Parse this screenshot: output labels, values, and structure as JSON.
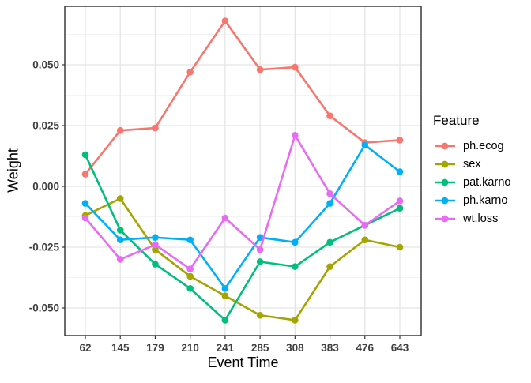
{
  "chart_data": {
    "type": "line",
    "title": "",
    "xlabel": "Event Time",
    "ylabel": "Weight",
    "x_categories": [
      "62",
      "145",
      "179",
      "210",
      "241",
      "285",
      "308",
      "383",
      "476",
      "643"
    ],
    "y_ticks": [
      0.05,
      0.025,
      0.0,
      -0.025,
      -0.05
    ],
    "y_tick_labels": [
      "0.050",
      "0.025",
      "0.000",
      "-0.025",
      "-0.050"
    ],
    "ylim": [
      -0.0615,
      0.074
    ],
    "grid": "major-and-minor-horizontal, major-vertical",
    "legend_title": "Feature",
    "legend_position": "right",
    "series": [
      {
        "name": "ph.ecog",
        "color": "#F8766D",
        "values": [
          0.005,
          0.023,
          0.024,
          0.047,
          0.068,
          0.048,
          0.049,
          0.029,
          0.018,
          0.019
        ]
      },
      {
        "name": "sex",
        "color": "#A3A500",
        "values": [
          -0.012,
          -0.005,
          -0.026,
          -0.037,
          -0.045,
          -0.053,
          -0.055,
          -0.033,
          -0.022,
          -0.025
        ]
      },
      {
        "name": "pat.karno",
        "color": "#00BF7D",
        "values": [
          0.013,
          -0.018,
          -0.032,
          -0.042,
          -0.055,
          -0.031,
          -0.033,
          -0.023,
          -0.016,
          -0.009
        ]
      },
      {
        "name": "ph.karno",
        "color": "#00B0F6",
        "values": [
          -0.007,
          -0.022,
          -0.021,
          -0.022,
          -0.042,
          -0.021,
          -0.023,
          -0.007,
          0.017,
          0.006
        ]
      },
      {
        "name": "wt.loss",
        "color": "#E76BF3",
        "values": [
          -0.013,
          -0.03,
          -0.024,
          -0.034,
          -0.013,
          -0.026,
          0.021,
          -0.003,
          -0.016,
          -0.006
        ]
      }
    ]
  },
  "style_colors": {
    "panel_border": "#2e2e2e",
    "grid_major": "#e5e5e5",
    "grid_minor": "#f1f1f1",
    "tick_mark": "#333333",
    "tick_label": "#404040",
    "axis_title": "#000000"
  }
}
